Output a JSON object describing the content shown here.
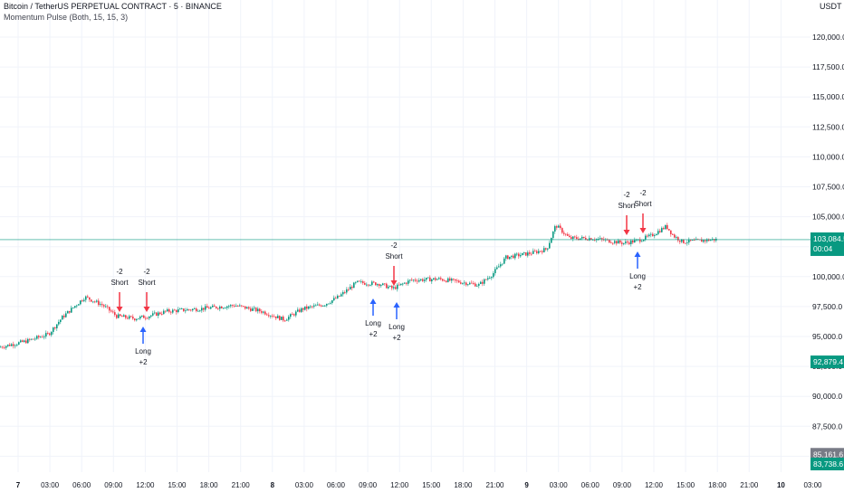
{
  "header": {
    "symbol_title": "Bitcoin / TetherUS PERPETUAL CONTRACT · 5 · BINANCE",
    "indicator_title": "Momentum Pulse (Both, 15, 15, 3)",
    "currency": "USDT"
  },
  "price_axis": {
    "ticks": [
      "120,000.0",
      "117,500.0",
      "115,000.0",
      "112,500.0",
      "110,000.0",
      "107,500.0",
      "105,000.0",
      "102,500.0",
      "100,000.0",
      "97,500.0",
      "95,000.0",
      "92,500.0",
      "90,000.0",
      "87,500.0",
      "85,000.0"
    ],
    "current_price": {
      "price": "103,084.5",
      "countdown": "00:04",
      "color": "#089981"
    },
    "labels": [
      {
        "text": "92,879.4",
        "color": "#089981",
        "value": 92879.4
      },
      {
        "text": "85,161.6",
        "color": "#787b86",
        "value": 85161.6
      },
      {
        "text": "83,738.6",
        "color": "#089981",
        "value": 83738.6
      }
    ]
  },
  "time_axis": {
    "labels": [
      "7",
      "03:00",
      "06:00",
      "09:00",
      "12:00",
      "15:00",
      "18:00",
      "21:00",
      "8",
      "03:00",
      "06:00",
      "09:00",
      "12:00",
      "15:00",
      "18:00",
      "21:00",
      "9",
      "03:00",
      "06:00",
      "09:00",
      "12:00",
      "15:00",
      "18:00",
      "21:00",
      "10",
      "03:00"
    ],
    "bold": [
      "7",
      "8",
      "9",
      "10"
    ]
  },
  "signals": [
    {
      "type": "short",
      "line1": "-2",
      "line2": "Short"
    },
    {
      "type": "short",
      "line1": "-2",
      "line2": "Short"
    },
    {
      "type": "long",
      "line1": "Long",
      "line2": "+2"
    },
    {
      "type": "long",
      "line1": "Long",
      "line2": "+2"
    },
    {
      "type": "short",
      "line1": "-2",
      "line2": "Short"
    },
    {
      "type": "long",
      "line1": "Long",
      "line2": "+2"
    },
    {
      "type": "short",
      "line1": "-2",
      "line2": "Short"
    },
    {
      "type": "short",
      "line1": "-2",
      "line2": "Short"
    },
    {
      "type": "long",
      "line1": "Long",
      "line2": "+2"
    }
  ],
  "colors": {
    "up": "#089981",
    "down": "#f23645",
    "short_arrow": "#f23645",
    "long_arrow": "#2962ff",
    "grid": "#f0f3fa"
  }
}
